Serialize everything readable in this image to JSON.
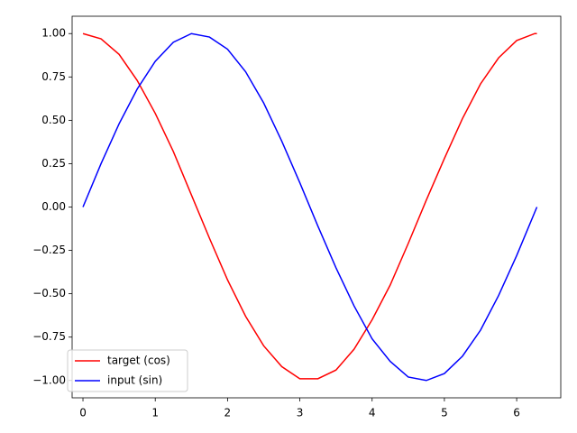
{
  "chart_data": {
    "type": "line",
    "x": [
      0,
      0.25,
      0.5,
      0.75,
      1,
      1.25,
      1.5,
      1.75,
      2,
      2.25,
      2.5,
      2.75,
      3,
      3.25,
      3.5,
      3.75,
      4,
      4.25,
      4.5,
      4.75,
      5,
      5.25,
      5.5,
      5.75,
      6,
      6.25,
      6.28
    ],
    "series": [
      {
        "name": "target (cos)",
        "color": "#ff0000",
        "values": [
          1,
          0.97,
          0.88,
          0.73,
          0.54,
          0.32,
          0.07,
          -0.18,
          -0.42,
          -0.63,
          -0.8,
          -0.92,
          -0.99,
          -0.99,
          -0.94,
          -0.82,
          -0.65,
          -0.45,
          -0.21,
          0.04,
          0.28,
          0.51,
          0.71,
          0.86,
          0.96,
          1,
          1
        ]
      },
      {
        "name": "input (sin)",
        "color": "#0000ff",
        "values": [
          0,
          0.25,
          0.48,
          0.68,
          0.84,
          0.95,
          1,
          0.98,
          0.91,
          0.78,
          0.6,
          0.38,
          0.14,
          -0.11,
          -0.35,
          -0.57,
          -0.76,
          -0.89,
          -0.98,
          -1,
          -0.96,
          -0.86,
          -0.71,
          -0.51,
          -0.28,
          -0.03,
          0
        ]
      }
    ],
    "xlim": [
      -0.15,
      6.61
    ],
    "xticks": [
      0,
      1,
      2,
      3,
      4,
      5,
      6
    ],
    "ylim": [
      -1.1,
      1.1
    ],
    "yticks": [
      {
        "value": -1,
        "label": "−1.00"
      },
      {
        "value": -0.75,
        "label": "−0.75"
      },
      {
        "value": -0.5,
        "label": "−0.50"
      },
      {
        "value": -0.25,
        "label": "−0.25"
      },
      {
        "value": 0,
        "label": "0.00"
      },
      {
        "value": 0.25,
        "label": "0.25"
      },
      {
        "value": 0.5,
        "label": "0.50"
      },
      {
        "value": 0.75,
        "label": "0.75"
      },
      {
        "value": 1,
        "label": "1.00"
      }
    ],
    "grid": false,
    "legend": "lower left"
  }
}
